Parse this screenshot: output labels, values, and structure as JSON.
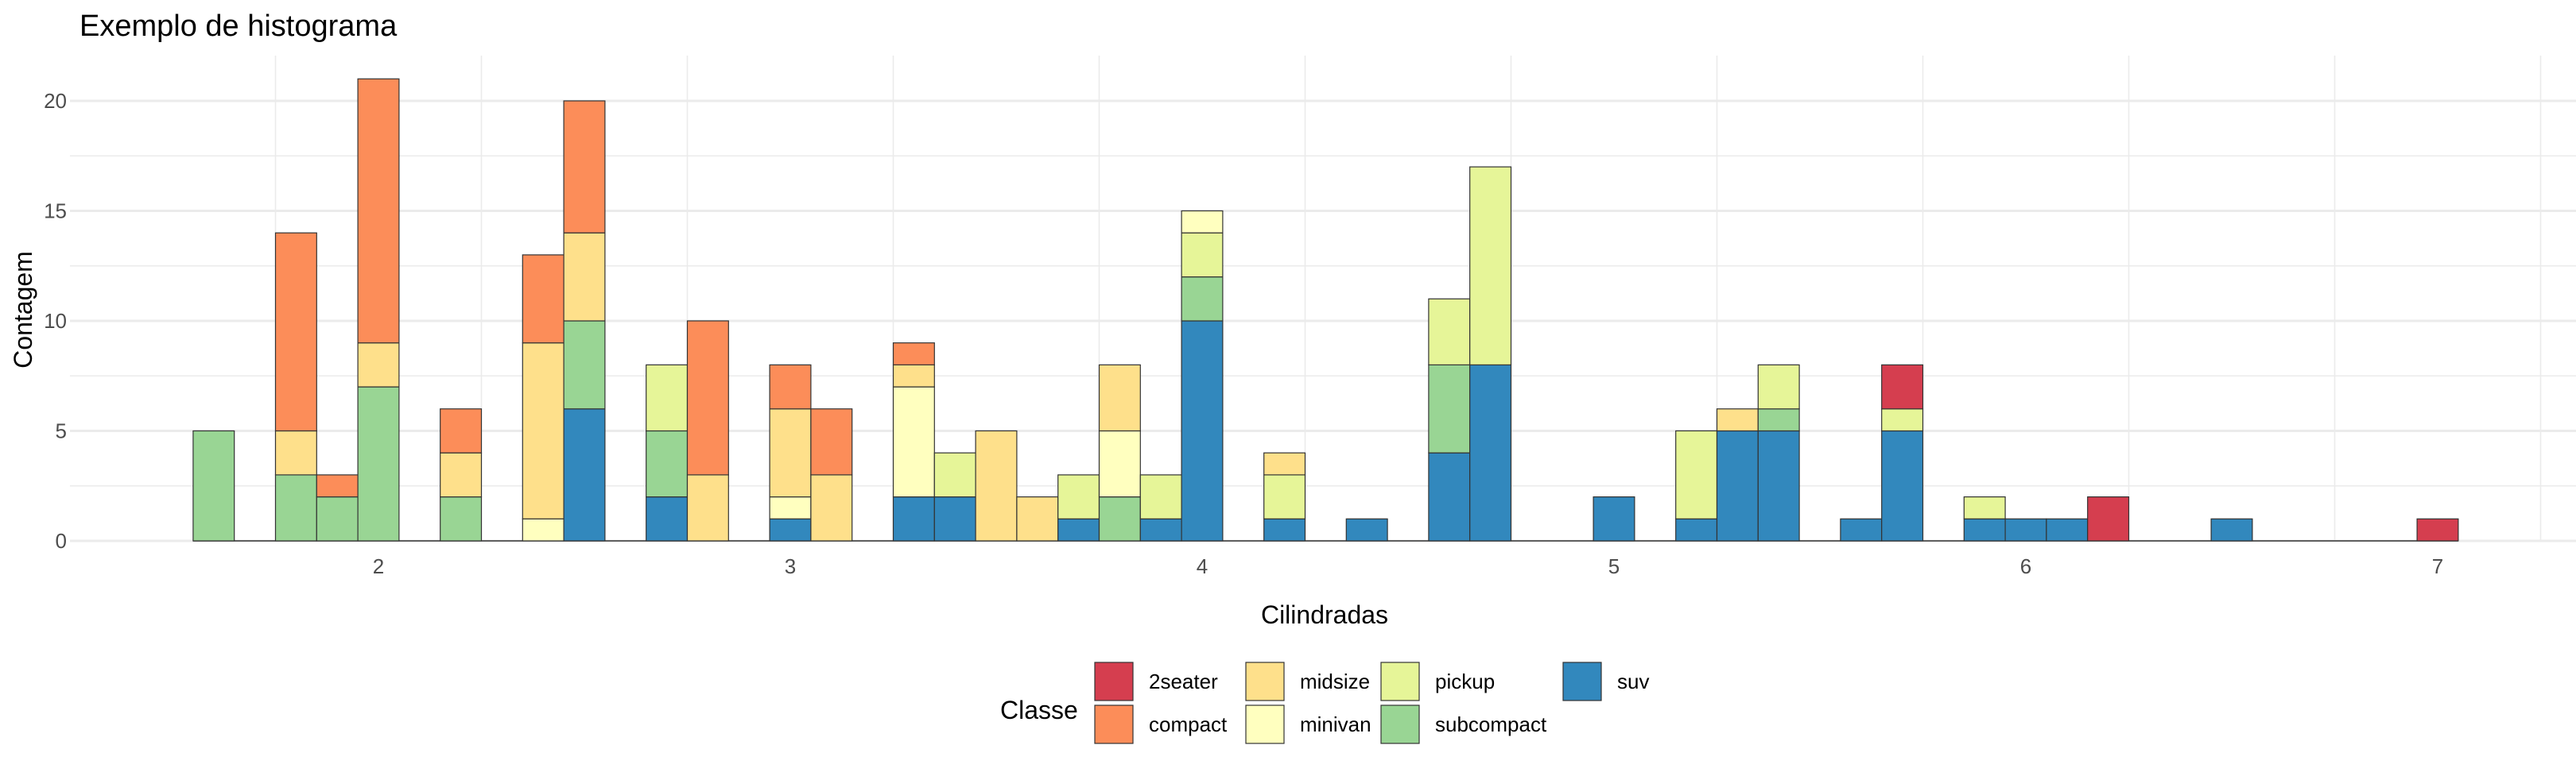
{
  "chart_data": {
    "type": "bar",
    "stacked": true,
    "title": "Exemplo de histograma",
    "xlabel": "Cilindradas",
    "ylabel": "Contagem",
    "xlim": [
      1.5,
      7.3
    ],
    "ylim": [
      0,
      21
    ],
    "x_ticks": [
      2,
      3,
      4,
      5,
      6,
      7
    ],
    "y_ticks": [
      0,
      5,
      10,
      15,
      20
    ],
    "bin_width": 0.1,
    "grid": true,
    "legend": {
      "title": "Classe",
      "position": "bottom",
      "entries": [
        "2seater",
        "compact",
        "midsize",
        "minivan",
        "pickup",
        "subcompact",
        "suv"
      ]
    },
    "colors": {
      "2seater": "#d53e4f",
      "compact": "#fc8d59",
      "midsize": "#fee08b",
      "minivan": "#ffffbf",
      "pickup": "#e6f598",
      "subcompact": "#99d594",
      "suv": "#3288bd"
    },
    "stack_order": [
      "suv",
      "subcompact",
      "pickup",
      "minivan",
      "midsize",
      "compact",
      "2seater"
    ],
    "bins": [
      {
        "x": 1.6,
        "counts": {
          "subcompact": 5
        }
      },
      {
        "x": 1.8,
        "counts": {
          "subcompact": 3,
          "midsize": 2,
          "compact": 9
        }
      },
      {
        "x": 1.9,
        "counts": {
          "subcompact": 2,
          "compact": 1
        }
      },
      {
        "x": 2.0,
        "counts": {
          "subcompact": 7,
          "midsize": 2,
          "compact": 12
        }
      },
      {
        "x": 2.2,
        "counts": {
          "subcompact": 2,
          "midsize": 2,
          "compact": 2
        }
      },
      {
        "x": 2.4,
        "counts": {
          "minivan": 1,
          "midsize": 8,
          "compact": 4
        }
      },
      {
        "x": 2.5,
        "counts": {
          "suv": 6,
          "subcompact": 4,
          "midsize": 4,
          "compact": 6
        }
      },
      {
        "x": 2.7,
        "counts": {
          "suv": 2,
          "subcompact": 3,
          "pickup": 3
        }
      },
      {
        "x": 2.8,
        "counts": {
          "midsize": 3,
          "compact": 7
        }
      },
      {
        "x": 3.0,
        "counts": {
          "suv": 1,
          "minivan": 1,
          "midsize": 4,
          "compact": 2
        }
      },
      {
        "x": 3.1,
        "counts": {
          "midsize": 3,
          "compact": 3
        }
      },
      {
        "x": 3.3,
        "counts": {
          "suv": 2,
          "minivan": 5,
          "midsize": 1,
          "compact": 1
        }
      },
      {
        "x": 3.4,
        "counts": {
          "suv": 2,
          "pickup": 2
        }
      },
      {
        "x": 3.5,
        "counts": {
          "midsize": 5
        }
      },
      {
        "x": 3.6,
        "counts": {
          "midsize": 2
        }
      },
      {
        "x": 3.7,
        "counts": {
          "suv": 1,
          "pickup": 2
        }
      },
      {
        "x": 3.8,
        "counts": {
          "subcompact": 2,
          "minivan": 3,
          "midsize": 3
        }
      },
      {
        "x": 3.9,
        "counts": {
          "suv": 1,
          "pickup": 2
        }
      },
      {
        "x": 4.0,
        "counts": {
          "suv": 10,
          "subcompact": 2,
          "pickup": 2,
          "minivan": 1
        }
      },
      {
        "x": 4.2,
        "counts": {
          "suv": 1,
          "pickup": 2,
          "midsize": 1
        }
      },
      {
        "x": 4.4,
        "counts": {
          "suv": 1
        }
      },
      {
        "x": 4.6,
        "counts": {
          "suv": 4,
          "subcompact": 4,
          "pickup": 3
        }
      },
      {
        "x": 4.7,
        "counts": {
          "suv": 8,
          "pickup": 9
        }
      },
      {
        "x": 5.0,
        "counts": {
          "suv": 2
        }
      },
      {
        "x": 5.2,
        "counts": {
          "suv": 1,
          "pickup": 4
        }
      },
      {
        "x": 5.3,
        "counts": {
          "suv": 5,
          "midsize": 1
        }
      },
      {
        "x": 5.4,
        "counts": {
          "suv": 5,
          "subcompact": 1,
          "pickup": 2
        }
      },
      {
        "x": 5.6,
        "counts": {
          "suv": 1
        }
      },
      {
        "x": 5.7,
        "counts": {
          "suv": 5,
          "pickup": 1,
          "2seater": 2
        }
      },
      {
        "x": 5.9,
        "counts": {
          "suv": 1,
          "pickup": 1
        }
      },
      {
        "x": 6.0,
        "counts": {
          "suv": 1
        }
      },
      {
        "x": 6.1,
        "counts": {
          "suv": 1
        }
      },
      {
        "x": 6.2,
        "counts": {
          "2seater": 2
        }
      },
      {
        "x": 6.5,
        "counts": {
          "suv": 1
        }
      },
      {
        "x": 7.0,
        "counts": {
          "2seater": 1
        }
      }
    ],
    "baseline_range": [
      1.55,
      7.05
    ]
  }
}
